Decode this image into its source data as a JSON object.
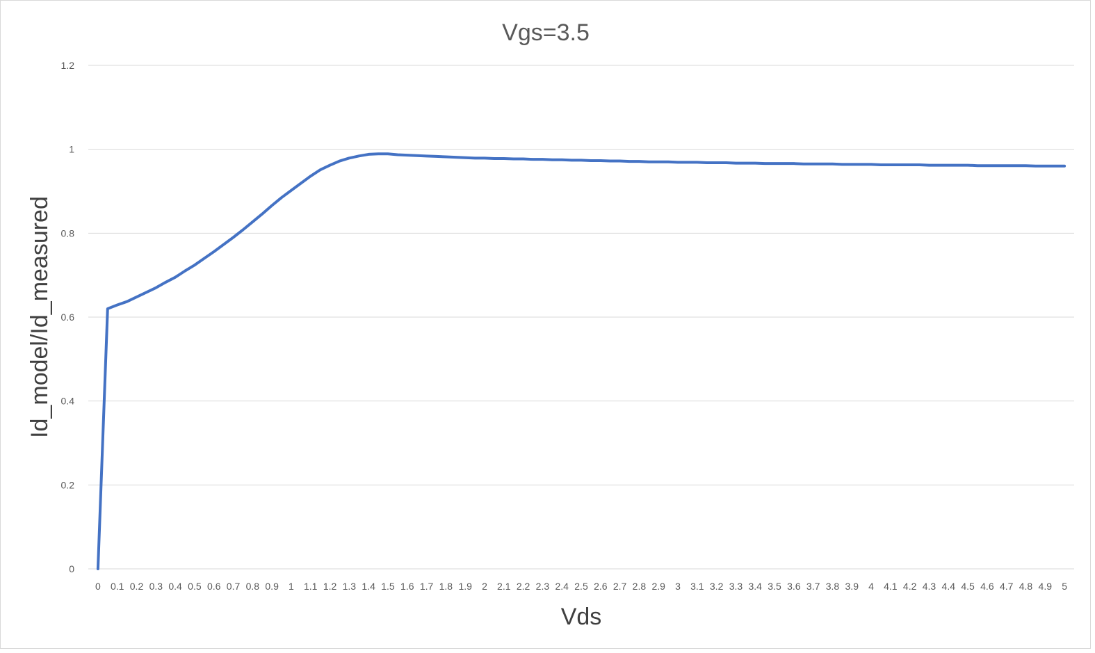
{
  "chart_data": {
    "type": "line",
    "title": "Vgs=3.5",
    "xlabel": "Vds",
    "ylabel": "Id_model/Id_measured",
    "ylim": [
      0,
      1.2
    ],
    "yticks": [
      "0",
      "0.2",
      "0.4",
      "0.6",
      "0.8",
      "1",
      "1.2"
    ],
    "grid": true,
    "legend": "none",
    "color": "#4472c4",
    "categories": [
      "0",
      "0.1",
      "0.2",
      "0.3",
      "0.4",
      "0.5",
      "0.6",
      "0.7",
      "0.8",
      "0.9",
      "1",
      "1.1",
      "1.2",
      "1.3",
      "1.4",
      "1.5",
      "1.6",
      "1.7",
      "1.8",
      "1.9",
      "2",
      "2.1",
      "2.2",
      "2.3",
      "2.4",
      "2.5",
      "2.6",
      "2.7",
      "2.8",
      "2.9",
      "3",
      "3.1",
      "3.2",
      "3.3",
      "3.4",
      "3.5",
      "3.6",
      "3.7",
      "3.8",
      "3.9",
      "4",
      "4.1",
      "4.2",
      "4.3",
      "4.4",
      "4.5",
      "4.6",
      "4.7",
      "4.8",
      "4.9",
      "5"
    ],
    "x": [
      0,
      0.05,
      0.1,
      0.15,
      0.2,
      0.25,
      0.3,
      0.35,
      0.4,
      0.45,
      0.5,
      0.55,
      0.6,
      0.65,
      0.7,
      0.75,
      0.8,
      0.85,
      0.9,
      0.95,
      1,
      1.05,
      1.1,
      1.15,
      1.2,
      1.25,
      1.3,
      1.35,
      1.4,
      1.45,
      1.5,
      1.55,
      1.6,
      1.65,
      1.7,
      1.75,
      1.8,
      1.85,
      1.9,
      1.95,
      2,
      2.05,
      2.1,
      2.15,
      2.2,
      2.25,
      2.3,
      2.35,
      2.4,
      2.45,
      2.5,
      2.55,
      2.6,
      2.65,
      2.7,
      2.75,
      2.8,
      2.85,
      2.9,
      2.95,
      3,
      3.05,
      3.1,
      3.15,
      3.2,
      3.25,
      3.3,
      3.35,
      3.4,
      3.45,
      3.5,
      3.55,
      3.6,
      3.65,
      3.7,
      3.75,
      3.8,
      3.85,
      3.9,
      3.95,
      4,
      4.05,
      4.1,
      4.15,
      4.2,
      4.25,
      4.3,
      4.35,
      4.4,
      4.45,
      4.5,
      4.55,
      4.6,
      4.65,
      4.7,
      4.75,
      4.8,
      4.85,
      4.9,
      4.95,
      5
    ],
    "y": [
      0,
      0.62,
      0.629,
      0.637,
      0.648,
      0.659,
      0.67,
      0.683,
      0.695,
      0.71,
      0.724,
      0.74,
      0.756,
      0.773,
      0.79,
      0.808,
      0.827,
      0.846,
      0.866,
      0.885,
      0.902,
      0.919,
      0.936,
      0.951,
      0.962,
      0.972,
      0.979,
      0.984,
      0.988,
      0.989,
      0.989,
      0.987,
      0.986,
      0.985,
      0.984,
      0.983,
      0.982,
      0.981,
      0.98,
      0.979,
      0.979,
      0.978,
      0.978,
      0.977,
      0.977,
      0.976,
      0.976,
      0.975,
      0.975,
      0.974,
      0.974,
      0.973,
      0.973,
      0.972,
      0.972,
      0.971,
      0.971,
      0.97,
      0.97,
      0.97,
      0.969,
      0.969,
      0.969,
      0.968,
      0.968,
      0.968,
      0.967,
      0.967,
      0.967,
      0.966,
      0.966,
      0.966,
      0.966,
      0.965,
      0.965,
      0.965,
      0.965,
      0.964,
      0.964,
      0.964,
      0.964,
      0.963,
      0.963,
      0.963,
      0.963,
      0.963,
      0.962,
      0.962,
      0.962,
      0.962,
      0.962,
      0.961,
      0.961,
      0.961,
      0.961,
      0.961,
      0.961,
      0.96,
      0.96,
      0.96,
      0.96
    ]
  }
}
